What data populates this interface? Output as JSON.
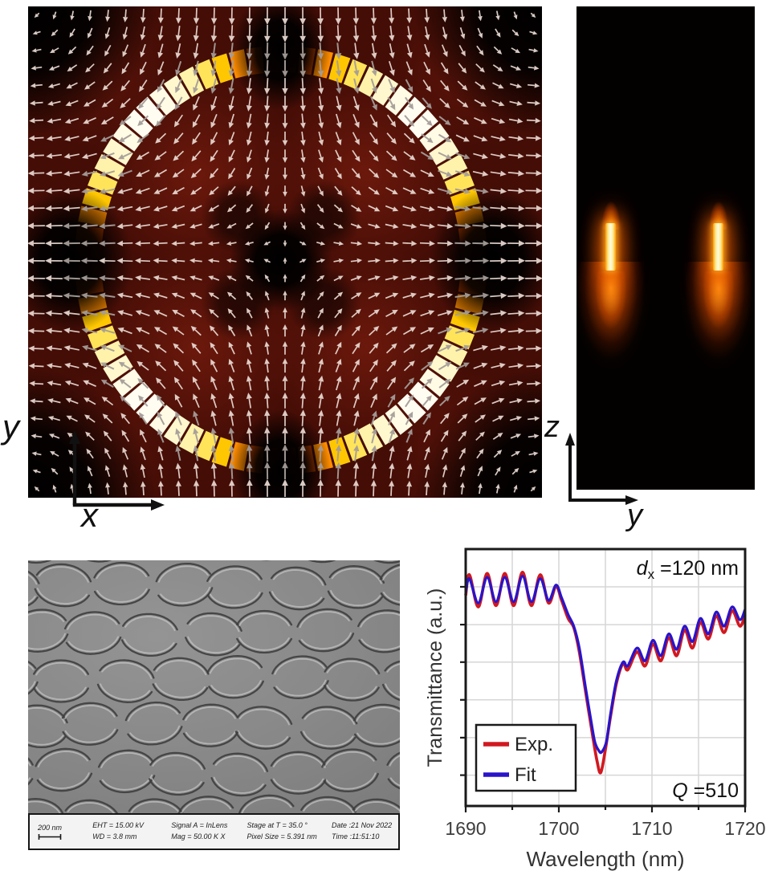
{
  "figure": {
    "description": "Metasurface mode field maps, SEM image and transmittance spectrum"
  },
  "panels": {
    "field_xy": {
      "x_axis_label": "x",
      "y_axis_label": "y",
      "background": "#440d06",
      "arrow_color": "#ead9d2",
      "arrow_color_on_ring": "#a49c98",
      "ring_colormap": [
        "#260300",
        "#7e1a00",
        "#d64700",
        "#ff8c00",
        "#ffd202",
        "#fff2a2",
        "#fffdf2"
      ]
    },
    "field_zy": {
      "x_axis_label": "y",
      "y_axis_label": "z",
      "background": "#000000",
      "hotspot_core_color": "#fffbe2",
      "hotspot_glow_color": "#ff7d0a"
    },
    "sem": {
      "scale_label": "200 nm",
      "info": [
        {
          "top": "EHT = 15.00 kV",
          "bottom": "WD =  3.8 mm"
        },
        {
          "top": "Signal A = InLens",
          "bottom": "Mag =  50.00 K X"
        },
        {
          "top": "Stage at T =  35.0 °",
          "bottom": "Pixel Size = 5.391 nm"
        },
        {
          "top": "Date :21 Nov 2022",
          "bottom": "Time :11:51:10"
        }
      ]
    }
  },
  "chart_data": {
    "type": "line",
    "title": "",
    "xlabel": "Wavelength (nm)",
    "ylabel": "Transmittance (a.u.)",
    "xlim": [
      1690,
      1720
    ],
    "ylim": [
      0,
      1
    ],
    "x_major_ticks": [
      1690,
      1700,
      1710,
      1720
    ],
    "x_minor_ticks": [
      1695,
      1705,
      1715
    ],
    "x_gridlines": [
      1695,
      1700,
      1705,
      1710,
      1715
    ],
    "y_gridlines": [
      0.12,
      0.266,
      0.413,
      0.56,
      0.706,
      0.853
    ],
    "y_tick_labels_shown": false,
    "grid": true,
    "legend": {
      "position": "lower-left",
      "entries": [
        {
          "label": "Exp.",
          "color": "#d11920"
        },
        {
          "label": "Fit",
          "color": "#2a14c8"
        }
      ]
    },
    "annotations": {
      "top_right": {
        "var": "d",
        "sub": "x",
        "rest": " =120 nm"
      },
      "bottom_right": {
        "var": "Q",
        "sub": "",
        "rest": " =510"
      }
    },
    "series": [
      {
        "name": "Exp.",
        "color": "#d11920",
        "points": [
          [
            1690,
            0.82
          ],
          [
            1690.4,
            0.9
          ],
          [
            1691.35,
            0.775
          ],
          [
            1692.3,
            0.905
          ],
          [
            1693.25,
            0.78
          ],
          [
            1694.2,
            0.905
          ],
          [
            1695.15,
            0.78
          ],
          [
            1696.1,
            0.91
          ],
          [
            1697.05,
            0.78
          ],
          [
            1698,
            0.9
          ],
          [
            1698.9,
            0.79
          ],
          [
            1699.7,
            0.855
          ],
          [
            1700.3,
            0.8
          ],
          [
            1701,
            0.73
          ],
          [
            1701.6,
            0.695
          ],
          [
            1702.2,
            0.6
          ],
          [
            1702.9,
            0.44
          ],
          [
            1703.6,
            0.28
          ],
          [
            1704.1,
            0.175
          ],
          [
            1704.5,
            0.13
          ],
          [
            1705,
            0.22
          ],
          [
            1705.6,
            0.36
          ],
          [
            1706.2,
            0.48
          ],
          [
            1706.9,
            0.555
          ],
          [
            1707.4,
            0.53
          ],
          [
            1708.4,
            0.6
          ],
          [
            1709.25,
            0.545
          ],
          [
            1710.1,
            0.63
          ],
          [
            1710.95,
            0.565
          ],
          [
            1711.8,
            0.655
          ],
          [
            1712.65,
            0.585
          ],
          [
            1713.5,
            0.685
          ],
          [
            1714.35,
            0.615
          ],
          [
            1715.2,
            0.715
          ],
          [
            1716.05,
            0.65
          ],
          [
            1716.9,
            0.74
          ],
          [
            1717.75,
            0.675
          ],
          [
            1718.6,
            0.76
          ],
          [
            1719.45,
            0.7
          ],
          [
            1720,
            0.745
          ]
        ]
      },
      {
        "name": "Fit",
        "color": "#2a14c8",
        "points": [
          [
            1690,
            0.83
          ],
          [
            1690.4,
            0.885
          ],
          [
            1691.35,
            0.79
          ],
          [
            1692.3,
            0.89
          ],
          [
            1693.25,
            0.795
          ],
          [
            1694.2,
            0.89
          ],
          [
            1695.15,
            0.795
          ],
          [
            1696.1,
            0.895
          ],
          [
            1697.05,
            0.795
          ],
          [
            1698,
            0.885
          ],
          [
            1698.9,
            0.8
          ],
          [
            1699.7,
            0.86
          ],
          [
            1700.3,
            0.81
          ],
          [
            1701,
            0.745
          ],
          [
            1701.6,
            0.7
          ],
          [
            1702.2,
            0.615
          ],
          [
            1702.9,
            0.455
          ],
          [
            1703.6,
            0.3
          ],
          [
            1703.9,
            0.245
          ],
          [
            1704.3,
            0.215
          ],
          [
            1704.6,
            0.21
          ],
          [
            1705.1,
            0.25
          ],
          [
            1705.6,
            0.37
          ],
          [
            1706.2,
            0.49
          ],
          [
            1706.9,
            0.56
          ],
          [
            1707.4,
            0.545
          ],
          [
            1708.4,
            0.615
          ],
          [
            1709.25,
            0.565
          ],
          [
            1710.1,
            0.645
          ],
          [
            1710.95,
            0.585
          ],
          [
            1711.8,
            0.67
          ],
          [
            1712.65,
            0.61
          ],
          [
            1713.5,
            0.7
          ],
          [
            1714.35,
            0.64
          ],
          [
            1715.2,
            0.73
          ],
          [
            1716.05,
            0.67
          ],
          [
            1716.9,
            0.755
          ],
          [
            1717.75,
            0.7
          ],
          [
            1718.6,
            0.775
          ],
          [
            1719.45,
            0.725
          ],
          [
            1720,
            0.765
          ]
        ]
      }
    ]
  }
}
